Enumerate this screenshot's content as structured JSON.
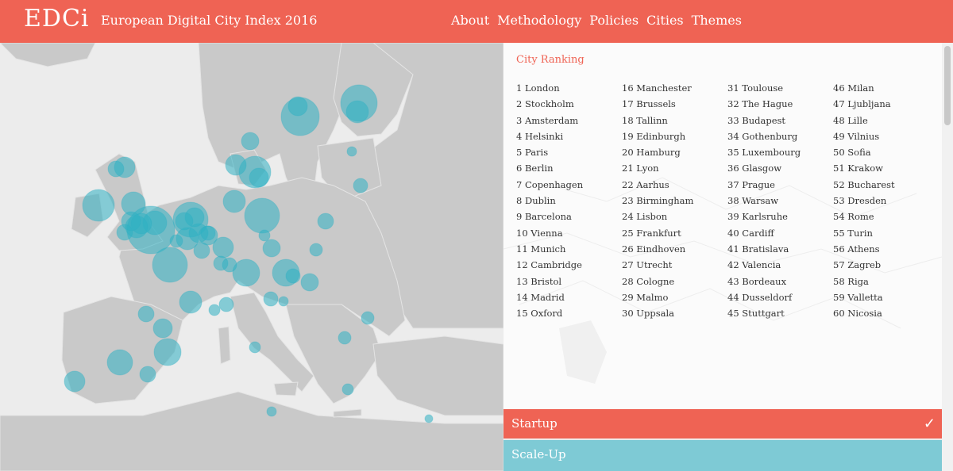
{
  "header": {
    "logo": "EDCi",
    "title": "European Digital City Index 2016",
    "nav": [
      "About",
      "Methodology",
      "Policies",
      "Cities",
      "Themes"
    ]
  },
  "colors": {
    "accent": "#ef6354",
    "bubble": "#2fb1c2",
    "land": "#c8c8c8",
    "sea": "#ececec",
    "scaleup": "#7ecad5"
  },
  "ranking": {
    "title": "City Ranking",
    "columns": [
      [
        "1 London",
        "2 Stockholm",
        "3 Amsterdam",
        "4 Helsinki",
        "5 Paris",
        "6 Berlin",
        "7 Copenhagen",
        "8 Dublin",
        "9 Barcelona",
        "10 Vienna",
        "11 Munich",
        "12 Cambridge",
        "13 Bristol",
        "14 Madrid",
        "15 Oxford"
      ],
      [
        "16 Manchester",
        "17 Brussels",
        "18 Tallinn",
        "19 Edinburgh",
        "20 Hamburg",
        "21 Lyon",
        "22 Aarhus",
        "23 Birmingham",
        "24 Lisbon",
        "25 Frankfurt",
        "26 Eindhoven",
        "27 Utrecht",
        "28 Cologne",
        "29 Malmo",
        "30 Uppsala"
      ],
      [
        "31 Toulouse",
        "32 The Hague",
        "33 Budapest",
        "34 Gothenburg",
        "35 Luxembourg",
        "36 Glasgow",
        "37 Prague",
        "38 Warsaw",
        "39 Karlsruhe",
        "40 Cardiff",
        "41 Bratislava",
        "42 Valencia",
        "43 Bordeaux",
        "44 Dusseldorf",
        "45 Stuttgart"
      ],
      [
        "46 Milan",
        "47 Ljubljana",
        "48 Lille",
        "49 Vilnius",
        "50 Sofia",
        "51 Krakow",
        "52 Bucharest",
        "53 Dresden",
        "54 Rome",
        "55 Turin",
        "56 Athens",
        "57 Zagreb",
        "58 Riga",
        "59 Valletta",
        "60 Nicosia"
      ]
    ]
  },
  "themes": [
    {
      "label": "Startup",
      "selected": true,
      "icon": "check-icon"
    },
    {
      "label": "Scale-Up",
      "selected": false
    }
  ]
}
